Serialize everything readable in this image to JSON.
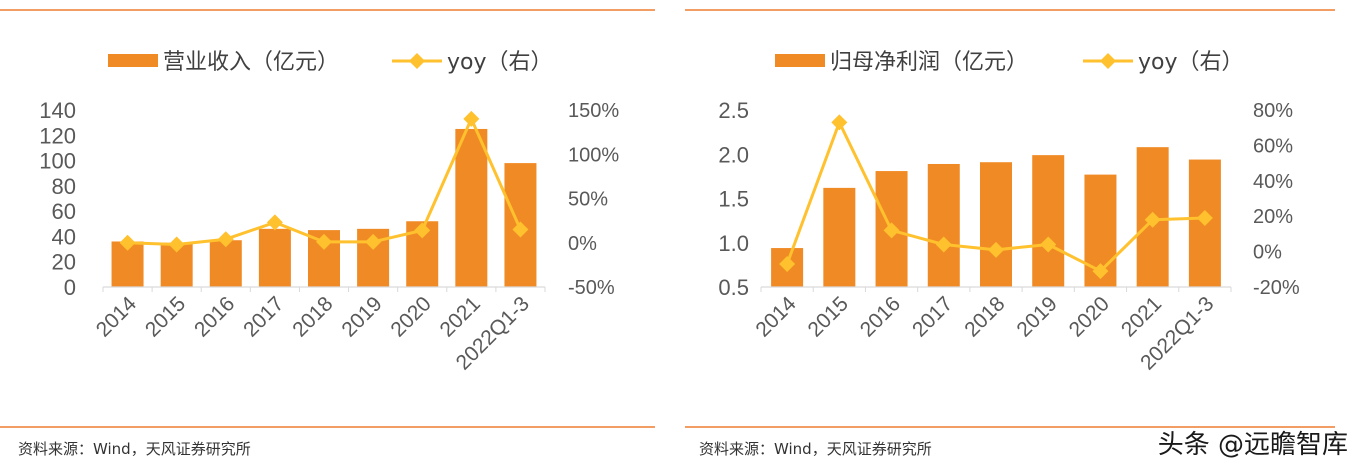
{
  "colors": {
    "bar": "#F08A24",
    "line": "#FFC12E",
    "rule": "#ED7D31",
    "axis": "#D9D9D9",
    "text": "#595959"
  },
  "watermark": "头条 @远瞻智库",
  "chart_data": [
    {
      "type": "bar",
      "categories": [
        "2014",
        "2015",
        "2016",
        "2017",
        "2018",
        "2019",
        "2020",
        "2021",
        "2022Q1-3"
      ],
      "series": [
        {
          "name": "营业收入（亿元）",
          "type": "bar",
          "axis": "left",
          "values": [
            36,
            35,
            37,
            46,
            45,
            46,
            52,
            125,
            98
          ]
        },
        {
          "name": "yoy（右）",
          "type": "line",
          "axis": "right",
          "marker": "diamond",
          "values": [
            0.0,
            -0.02,
            0.04,
            0.23,
            0.01,
            0.01,
            0.14,
            1.4,
            0.15
          ]
        }
      ],
      "left_axis": {
        "ylim": [
          0,
          140
        ],
        "ticks": [
          "0",
          "20",
          "40",
          "60",
          "80",
          "100",
          "120",
          "140"
        ]
      },
      "right_axis": {
        "ylim": [
          -0.5,
          1.5
        ],
        "ticks": [
          "-50%",
          "0%",
          "50%",
          "100%",
          "150%"
        ]
      },
      "legend": "top",
      "source": "资料来源：Wind，天风证券研究所"
    },
    {
      "type": "bar",
      "categories": [
        "2014",
        "2015",
        "2016",
        "2017",
        "2018",
        "2019",
        "2020",
        "2021",
        "2022Q1-3"
      ],
      "series": [
        {
          "name": "归母净利润（亿元）",
          "type": "bar",
          "axis": "left",
          "values": [
            0.94,
            1.62,
            1.81,
            1.89,
            1.91,
            1.99,
            1.77,
            2.08,
            1.94
          ]
        },
        {
          "name": "yoy（右）",
          "type": "line",
          "axis": "right",
          "marker": "diamond",
          "values": [
            -0.07,
            0.73,
            0.12,
            0.04,
            0.01,
            0.04,
            -0.11,
            0.18,
            0.19
          ]
        }
      ],
      "left_axis": {
        "ylim": [
          0.5,
          2.5
        ],
        "ticks": [
          "0.5",
          "1.0",
          "1.5",
          "2.0",
          "2.5"
        ]
      },
      "right_axis": {
        "ylim": [
          -0.2,
          0.8
        ],
        "ticks": [
          "-20%",
          "0%",
          "20%",
          "40%",
          "60%",
          "80%"
        ]
      },
      "legend": "top",
      "source": "资料来源：Wind，天风证券研究所"
    }
  ]
}
